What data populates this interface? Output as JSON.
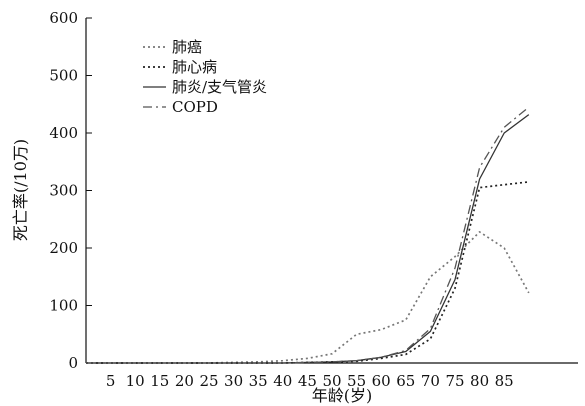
{
  "chart_data": {
    "type": "line",
    "title": "",
    "xlabel": "年龄(岁)",
    "ylabel": "死亡率(/10万)",
    "ylim": [
      0,
      600
    ],
    "yticks": [
      "0",
      "100",
      "200",
      "300",
      "400",
      "500",
      "600"
    ],
    "xtick_labels": [
      "5",
      "10",
      "15",
      "20",
      "25",
      "30",
      "35",
      "40",
      "45",
      "50",
      "55",
      "60",
      "65",
      "70",
      "75",
      "80",
      "85"
    ],
    "x": [
      0,
      5,
      10,
      15,
      20,
      25,
      30,
      35,
      40,
      45,
      50,
      55,
      60,
      65,
      70,
      75,
      80,
      85,
      90
    ],
    "grid": false,
    "legend_position": "upper-left",
    "series": [
      {
        "name": "肺癌",
        "style": "dotted",
        "color": "#777777",
        "values": [
          0,
          0,
          0,
          0,
          0,
          0,
          1,
          2,
          4,
          8,
          16,
          50,
          58,
          75,
          150,
          185,
          228,
          200,
          122
        ]
      },
      {
        "name": "肺心病",
        "style": "dotted",
        "color": "#222222",
        "values": [
          0,
          0,
          0,
          0,
          0,
          0,
          0,
          0,
          0,
          1,
          2,
          3,
          8,
          15,
          42,
          130,
          305,
          310,
          315
        ]
      },
      {
        "name": "肺炎/支气管炎",
        "style": "solid",
        "color": "#333333",
        "values": [
          0,
          0,
          0,
          0,
          0,
          0,
          0,
          0,
          0,
          1,
          2,
          4,
          10,
          20,
          55,
          145,
          320,
          400,
          432
        ]
      },
      {
        "name": "COPD",
        "style": "dashdot",
        "color": "#555555",
        "values": [
          0,
          0,
          0,
          0,
          0,
          0,
          0,
          0,
          0,
          1,
          2,
          4,
          10,
          22,
          60,
          165,
          340,
          410,
          445
        ]
      }
    ]
  }
}
